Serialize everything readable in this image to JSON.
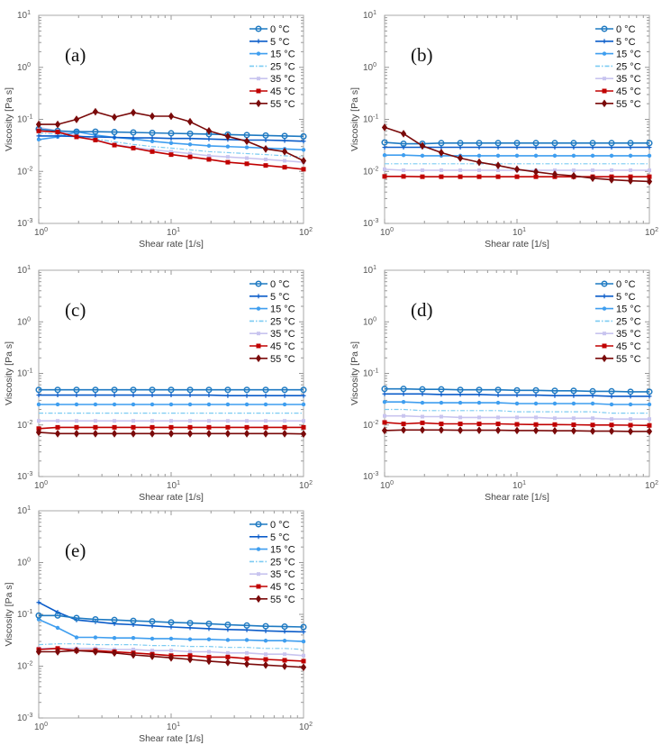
{
  "colors": {
    "0 °C": "#1f7ac2",
    "5 °C": "#0b5cc9",
    "15 °C": "#3f9eef",
    "25 °C": "#7ccbf2",
    "35 °C": "#c8c4ef",
    "45 °C": "#c00000",
    "55 °C": "#7a0a0a"
  },
  "markers": {
    "0 °C": "open-circle",
    "5 °C": "plus",
    "15 °C": "dot",
    "25 °C": "none-dashdot",
    "35 °C": "small-square",
    "45 °C": "square",
    "55 °C": "diamond"
  },
  "chart_data": [
    {
      "panel_label": "(a)",
      "type": "line",
      "xlabel": "Shear rate [1/s]",
      "ylabel": "Viscosity [Pa s]",
      "xscale": "log",
      "yscale": "log",
      "xlim": [
        1,
        100
      ],
      "ylim": [
        0.001,
        10
      ],
      "x": [
        1,
        1.39,
        1.93,
        2.68,
        3.73,
        5.18,
        7.2,
        10,
        13.9,
        19.3,
        26.8,
        37.3,
        51.8,
        72,
        100
      ],
      "series": [
        {
          "name": "0 °C",
          "values": [
            0.065,
            0.06,
            0.058,
            0.058,
            0.057,
            0.056,
            0.055,
            0.054,
            0.053,
            0.052,
            0.051,
            0.05,
            0.049,
            0.048,
            0.047
          ]
        },
        {
          "name": "5 °C",
          "values": [
            0.048,
            0.048,
            0.047,
            0.046,
            0.045,
            0.044,
            0.044,
            0.043,
            0.043,
            0.042,
            0.041,
            0.04,
            0.04,
            0.039,
            0.038
          ]
        },
        {
          "name": "15 °C",
          "values": [
            0.041,
            0.046,
            0.058,
            0.05,
            0.045,
            0.042,
            0.038,
            0.035,
            0.033,
            0.031,
            0.03,
            0.029,
            0.028,
            0.027,
            0.026
          ]
        },
        {
          "name": "25 °C",
          "values": [
            0.055,
            0.052,
            0.048,
            0.042,
            0.037,
            0.033,
            0.03,
            0.028,
            0.026,
            0.024,
            0.023,
            0.022,
            0.021,
            0.02,
            0.019
          ]
        },
        {
          "name": "35 °C",
          "values": [
            0.07,
            0.06,
            0.05,
            0.04,
            0.033,
            0.029,
            0.026,
            0.024,
            0.022,
            0.02,
            0.019,
            0.018,
            0.017,
            0.016,
            0.015
          ]
        },
        {
          "name": "45 °C",
          "values": [
            0.06,
            0.057,
            0.046,
            0.04,
            0.032,
            0.028,
            0.024,
            0.021,
            0.019,
            0.017,
            0.015,
            0.014,
            0.013,
            0.012,
            0.011
          ]
        },
        {
          "name": "55 °C",
          "values": [
            0.08,
            0.08,
            0.1,
            0.14,
            0.11,
            0.135,
            0.115,
            0.115,
            0.09,
            0.06,
            0.047,
            0.038,
            0.027,
            0.024,
            0.016
          ]
        }
      ]
    },
    {
      "panel_label": "(b)",
      "type": "line",
      "xlabel": "Shear rate [1/s]",
      "ylabel": "Viscosity [Pa s]",
      "xscale": "log",
      "yscale": "log",
      "xlim": [
        1,
        100
      ],
      "ylim": [
        0.001,
        10
      ],
      "x": [
        1,
        1.39,
        1.93,
        2.68,
        3.73,
        5.18,
        7.2,
        10,
        13.9,
        19.3,
        26.8,
        37.3,
        51.8,
        72,
        100
      ],
      "series": [
        {
          "name": "0 °C",
          "values": [
            0.036,
            0.034,
            0.034,
            0.035,
            0.035,
            0.035,
            0.035,
            0.035,
            0.035,
            0.035,
            0.035,
            0.035,
            0.035,
            0.035,
            0.035
          ]
        },
        {
          "name": "5 °C",
          "values": [
            0.029,
            0.029,
            0.029,
            0.029,
            0.029,
            0.029,
            0.029,
            0.029,
            0.029,
            0.029,
            0.029,
            0.029,
            0.029,
            0.029,
            0.029
          ]
        },
        {
          "name": "15 °C",
          "values": [
            0.0205,
            0.0205,
            0.02,
            0.02,
            0.02,
            0.02,
            0.02,
            0.02,
            0.02,
            0.02,
            0.02,
            0.02,
            0.02,
            0.02,
            0.02
          ]
        },
        {
          "name": "25 °C",
          "values": [
            0.014,
            0.014,
            0.014,
            0.014,
            0.014,
            0.014,
            0.014,
            0.014,
            0.014,
            0.014,
            0.014,
            0.014,
            0.014,
            0.014,
            0.014
          ]
        },
        {
          "name": "35 °C",
          "values": [
            0.011,
            0.0105,
            0.0105,
            0.0105,
            0.0105,
            0.0105,
            0.0105,
            0.0105,
            0.0105,
            0.0105,
            0.0105,
            0.0105,
            0.0105,
            0.0105,
            0.0105
          ]
        },
        {
          "name": "45 °C",
          "values": [
            0.008,
            0.008,
            0.0079,
            0.0079,
            0.0079,
            0.0079,
            0.0079,
            0.0079,
            0.0079,
            0.0079,
            0.0079,
            0.0079,
            0.0079,
            0.0079,
            0.0079
          ]
        },
        {
          "name": "55 °C",
          "values": [
            0.07,
            0.053,
            0.031,
            0.023,
            0.018,
            0.015,
            0.013,
            0.011,
            0.0098,
            0.0088,
            0.0082,
            0.0074,
            0.0069,
            0.0066,
            0.0064
          ]
        }
      ]
    },
    {
      "panel_label": "(c)",
      "type": "line",
      "xlabel": "Shear rate [1/s]",
      "ylabel": "Viscosity [Pa s]",
      "xscale": "log",
      "yscale": "log",
      "xlim": [
        1,
        100
      ],
      "ylim": [
        0.001,
        10
      ],
      "x": [
        1,
        1.39,
        1.93,
        2.68,
        3.73,
        5.18,
        7.2,
        10,
        13.9,
        19.3,
        26.8,
        37.3,
        51.8,
        72,
        100
      ],
      "series": [
        {
          "name": "0 °C",
          "values": [
            0.048,
            0.048,
            0.048,
            0.048,
            0.048,
            0.048,
            0.048,
            0.048,
            0.048,
            0.048,
            0.048,
            0.048,
            0.048,
            0.048,
            0.048
          ]
        },
        {
          "name": "5 °C",
          "values": [
            0.038,
            0.038,
            0.038,
            0.038,
            0.038,
            0.038,
            0.038,
            0.038,
            0.038,
            0.038,
            0.037,
            0.037,
            0.037,
            0.037,
            0.037
          ]
        },
        {
          "name": "15 °C",
          "values": [
            0.025,
            0.025,
            0.025,
            0.025,
            0.025,
            0.025,
            0.025,
            0.025,
            0.025,
            0.025,
            0.025,
            0.025,
            0.025,
            0.025,
            0.025
          ]
        },
        {
          "name": "25 °C",
          "values": [
            0.017,
            0.017,
            0.017,
            0.017,
            0.017,
            0.017,
            0.017,
            0.017,
            0.017,
            0.017,
            0.017,
            0.017,
            0.017,
            0.017,
            0.017
          ]
        },
        {
          "name": "35 °C",
          "values": [
            0.012,
            0.012,
            0.012,
            0.012,
            0.012,
            0.012,
            0.012,
            0.012,
            0.012,
            0.012,
            0.012,
            0.012,
            0.012,
            0.012,
            0.012
          ]
        },
        {
          "name": "45 °C",
          "values": [
            0.0085,
            0.009,
            0.009,
            0.009,
            0.009,
            0.009,
            0.009,
            0.009,
            0.009,
            0.009,
            0.009,
            0.009,
            0.009,
            0.009,
            0.009
          ]
        },
        {
          "name": "55 °C",
          "values": [
            0.0072,
            0.0068,
            0.0068,
            0.0068,
            0.0068,
            0.0068,
            0.0068,
            0.0068,
            0.0068,
            0.0068,
            0.0068,
            0.0068,
            0.0068,
            0.0068,
            0.0067
          ]
        }
      ]
    },
    {
      "panel_label": "(d)",
      "type": "line",
      "xlabel": "Shear rate [1/s]",
      "ylabel": "Viscosity [Pa s]",
      "xscale": "log",
      "yscale": "log",
      "xlim": [
        1,
        100
      ],
      "ylim": [
        0.001,
        10
      ],
      "x": [
        1,
        1.39,
        1.93,
        2.68,
        3.73,
        5.18,
        7.2,
        10,
        13.9,
        19.3,
        26.8,
        37.3,
        51.8,
        72,
        100
      ],
      "series": [
        {
          "name": "0 °C",
          "values": [
            0.05,
            0.05,
            0.049,
            0.049,
            0.048,
            0.048,
            0.048,
            0.047,
            0.047,
            0.046,
            0.046,
            0.045,
            0.045,
            0.044,
            0.044
          ]
        },
        {
          "name": "5 °C",
          "values": [
            0.04,
            0.04,
            0.04,
            0.039,
            0.039,
            0.039,
            0.038,
            0.038,
            0.038,
            0.037,
            0.037,
            0.037,
            0.036,
            0.036,
            0.036
          ]
        },
        {
          "name": "15 °C",
          "values": [
            0.028,
            0.028,
            0.027,
            0.027,
            0.027,
            0.027,
            0.027,
            0.026,
            0.026,
            0.026,
            0.026,
            0.026,
            0.025,
            0.025,
            0.025
          ]
        },
        {
          "name": "25 °C",
          "values": [
            0.02,
            0.02,
            0.019,
            0.019,
            0.019,
            0.019,
            0.019,
            0.018,
            0.018,
            0.018,
            0.018,
            0.018,
            0.017,
            0.017,
            0.017
          ]
        },
        {
          "name": "35 °C",
          "values": [
            0.015,
            0.015,
            0.0145,
            0.0145,
            0.014,
            0.014,
            0.014,
            0.014,
            0.014,
            0.0135,
            0.0135,
            0.0135,
            0.013,
            0.013,
            0.013
          ]
        },
        {
          "name": "45 °C",
          "values": [
            0.0112,
            0.0105,
            0.011,
            0.0105,
            0.0105,
            0.0105,
            0.0105,
            0.0103,
            0.0102,
            0.0102,
            0.0101,
            0.01,
            0.01,
            0.0099,
            0.0098
          ]
        },
        {
          "name": "55 °C",
          "values": [
            0.0078,
            0.008,
            0.008,
            0.008,
            0.0079,
            0.0079,
            0.0079,
            0.0078,
            0.0078,
            0.0077,
            0.0077,
            0.0076,
            0.0076,
            0.0075,
            0.0075
          ]
        }
      ]
    },
    {
      "panel_label": "(e)",
      "type": "line",
      "xlabel": "Shear rate [1/s]",
      "ylabel": "Viscosity [Pa s]",
      "xscale": "log",
      "yscale": "log",
      "xlim": [
        1,
        100
      ],
      "ylim": [
        0.001,
        10
      ],
      "x": [
        1,
        1.39,
        1.93,
        2.68,
        3.73,
        5.18,
        7.2,
        10,
        13.9,
        19.3,
        26.8,
        37.3,
        51.8,
        72,
        100
      ],
      "series": [
        {
          "name": "0 °C",
          "values": [
            0.095,
            0.095,
            0.085,
            0.08,
            0.078,
            0.075,
            0.073,
            0.07,
            0.068,
            0.066,
            0.063,
            0.061,
            0.059,
            0.058,
            0.057
          ]
        },
        {
          "name": "5 °C",
          "values": [
            0.17,
            0.11,
            0.078,
            0.072,
            0.066,
            0.063,
            0.06,
            0.057,
            0.055,
            0.053,
            0.051,
            0.05,
            0.048,
            0.047,
            0.046
          ]
        },
        {
          "name": "15 °C",
          "values": [
            0.08,
            0.055,
            0.036,
            0.036,
            0.035,
            0.035,
            0.034,
            0.034,
            0.033,
            0.033,
            0.032,
            0.032,
            0.031,
            0.031,
            0.03
          ]
        },
        {
          "name": "25 °C",
          "values": [
            0.026,
            0.027,
            0.027,
            0.026,
            0.026,
            0.026,
            0.025,
            0.025,
            0.024,
            0.024,
            0.023,
            0.023,
            0.022,
            0.022,
            0.021
          ]
        },
        {
          "name": "35 °C",
          "values": [
            0.022,
            0.022,
            0.022,
            0.022,
            0.021,
            0.021,
            0.02,
            0.02,
            0.019,
            0.019,
            0.018,
            0.018,
            0.017,
            0.017,
            0.016
          ]
        },
        {
          "name": "45 °C",
          "values": [
            0.021,
            0.022,
            0.02,
            0.02,
            0.019,
            0.018,
            0.017,
            0.016,
            0.016,
            0.015,
            0.015,
            0.014,
            0.0135,
            0.013,
            0.0125
          ]
        },
        {
          "name": "55 °C",
          "values": [
            0.019,
            0.019,
            0.02,
            0.019,
            0.018,
            0.0165,
            0.0155,
            0.0145,
            0.0135,
            0.0125,
            0.0118,
            0.011,
            0.0105,
            0.01,
            0.0095
          ]
        }
      ]
    }
  ]
}
